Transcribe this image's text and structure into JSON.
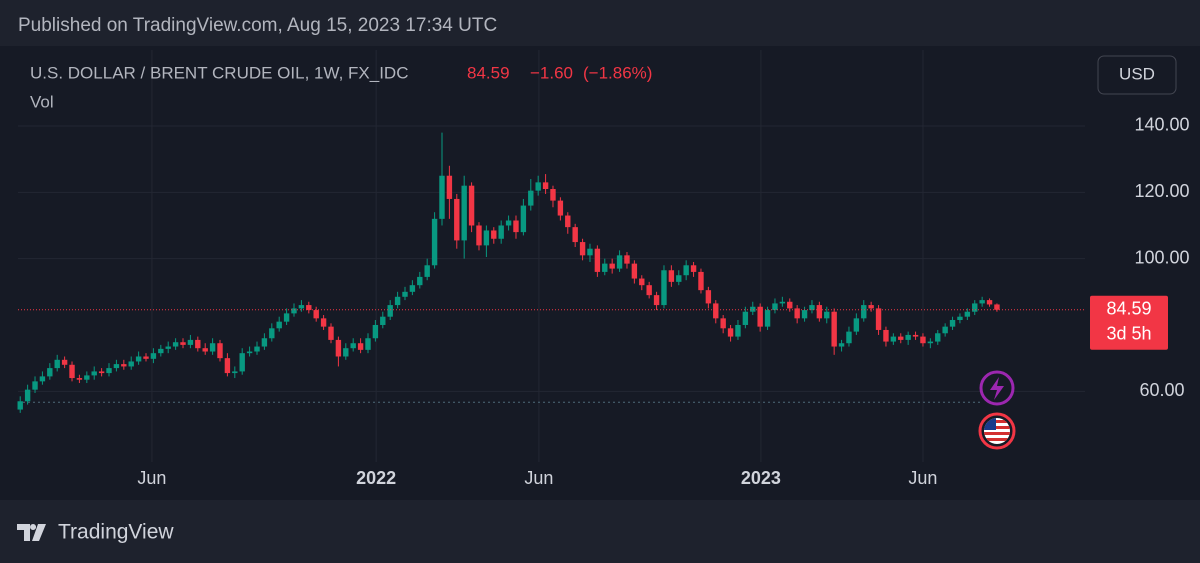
{
  "published": "Published on TradingView.com, Aug 15, 2023 17:34 UTC",
  "brand": "TradingView",
  "chart_data": {
    "type": "candlestick",
    "title": "U.S. DOLLAR / BRENT CRUDE OIL, 1W, FX_IDC",
    "last_price": 84.59,
    "change": {
      "value": -1.6,
      "label": "−1.60"
    },
    "change_pct": {
      "value": -1.86,
      "label": "(−1.86%)"
    },
    "indicator": "Vol",
    "currency": "USD",
    "countdown": "3d 5h",
    "ref_line": 56.7,
    "up_color": "#089981",
    "down_color": "#f23645",
    "grid": true,
    "x": [
      0,
      1,
      2,
      3,
      4,
      5,
      6,
      7,
      8,
      9,
      10,
      11,
      12,
      13,
      14,
      15,
      16,
      17,
      18,
      19,
      20,
      21,
      22,
      23,
      24,
      25,
      26,
      27,
      28,
      29,
      30,
      31,
      32,
      33,
      34,
      35,
      36,
      37,
      38,
      39,
      40,
      41,
      42,
      43,
      44,
      45,
      46,
      47,
      48,
      49,
      50,
      51,
      52,
      53,
      54,
      55,
      56,
      57,
      58,
      59,
      60,
      61,
      62,
      63,
      64,
      65,
      66,
      67,
      68,
      69,
      70,
      71,
      72,
      73,
      74,
      75,
      76,
      77,
      78,
      79,
      80,
      81,
      82,
      83,
      84,
      85,
      86,
      87,
      88,
      89,
      90,
      91,
      92,
      93,
      94,
      95,
      96,
      97,
      98,
      99,
      100,
      101,
      102,
      103,
      104,
      105,
      106,
      107,
      108,
      109,
      110,
      111,
      112,
      113,
      114,
      115,
      116,
      117,
      118,
      119,
      120,
      121,
      122,
      123,
      124,
      125,
      126,
      127,
      128,
      129,
      130,
      131,
      132
    ],
    "open": [
      54.5,
      57.0,
      60.5,
      63.0,
      64.5,
      67.0,
      69.5,
      68.0,
      64.0,
      63.5,
      64.8,
      66.0,
      65.5,
      67.0,
      68.2,
      67.5,
      69.0,
      70.5,
      69.8,
      71.5,
      72.8,
      73.5,
      74.8,
      74.0,
      75.5,
      73.0,
      72.0,
      74.5,
      70.0,
      65.5,
      66.0,
      71.5,
      72.0,
      73.5,
      76.0,
      79.0,
      81.0,
      83.5,
      85.0,
      86.0,
      84.5,
      82.0,
      79.5,
      75.5,
      70.5,
      73.0,
      74.5,
      72.5,
      76.0,
      80.0,
      82.5,
      86.0,
      88.5,
      90.0,
      92.0,
      94.5,
      98.0,
      112.0,
      125.0,
      118.0,
      105.5,
      122.0,
      110.0,
      104.0,
      108.5,
      106.0,
      110.0,
      111.5,
      108.0,
      116.0,
      120.5,
      123.0,
      121.0,
      117.5,
      113.0,
      109.5,
      105.0,
      101.0,
      103.0,
      96.0,
      98.5,
      97.0,
      101.0,
      98.5,
      94.0,
      92.0,
      89.0,
      86.0,
      96.5,
      93.0,
      95.0,
      98.0,
      96.0,
      90.5,
      86.5,
      82.0,
      79.0,
      76.5,
      80.0,
      84.0,
      85.5,
      79.5,
      84.5,
      86.5,
      87.0,
      85.0,
      82.0,
      84.5,
      86.0,
      82.0,
      84.0,
      73.5,
      74.5,
      78.0,
      82.0,
      86.0,
      85.0,
      78.5,
      75.0,
      76.5,
      75.5,
      77.0,
      76.5,
      74.5,
      75.0,
      77.5,
      79.5,
      81.5,
      82.5,
      84.0,
      86.5,
      87.5,
      86.19
    ],
    "high": [
      58.5,
      62.0,
      64.5,
      66.0,
      68.5,
      71.0,
      70.5,
      69.0,
      65.0,
      66.0,
      67.5,
      67.0,
      68.5,
      69.5,
      69.5,
      70.5,
      72.0,
      71.5,
      73.0,
      74.0,
      75.0,
      76.0,
      76.0,
      77.0,
      76.5,
      74.5,
      76.0,
      75.5,
      71.5,
      67.5,
      73.0,
      73.5,
      75.0,
      77.5,
      80.5,
      82.5,
      85.0,
      86.5,
      87.5,
      87.0,
      85.5,
      83.0,
      80.5,
      76.5,
      74.5,
      76.0,
      76.0,
      77.5,
      81.5,
      84.0,
      87.5,
      90.0,
      91.5,
      93.5,
      96.0,
      100.0,
      114.0,
      138.0,
      128.0,
      119.5,
      125.0,
      123.0,
      111.0,
      110.0,
      109.5,
      111.5,
      113.0,
      113.0,
      118.0,
      124.0,
      125.0,
      125.5,
      122.0,
      118.5,
      114.0,
      110.5,
      106.0,
      104.5,
      104.0,
      100.0,
      100.0,
      102.5,
      102.0,
      99.5,
      95.0,
      93.0,
      90.0,
      98.0,
      98.0,
      96.5,
      99.5,
      99.0,
      97.0,
      91.5,
      87.5,
      83.0,
      80.0,
      81.5,
      85.5,
      87.0,
      86.5,
      85.5,
      88.0,
      88.5,
      88.0,
      86.0,
      85.5,
      87.5,
      87.0,
      85.5,
      85.0,
      75.5,
      79.5,
      83.5,
      87.5,
      87.0,
      86.0,
      79.5,
      77.5,
      77.5,
      78.0,
      78.0,
      77.5,
      76.0,
      78.5,
      80.5,
      82.5,
      83.5,
      85.0,
      87.5,
      88.5,
      88.0,
      86.5
    ],
    "low": [
      53.5,
      56.0,
      59.5,
      62.0,
      63.5,
      66.0,
      67.0,
      63.0,
      62.5,
      62.5,
      63.5,
      64.5,
      64.5,
      66.0,
      66.5,
      66.5,
      68.0,
      69.0,
      68.5,
      70.5,
      71.5,
      72.5,
      73.0,
      73.0,
      72.0,
      71.0,
      71.0,
      69.0,
      64.5,
      64.0,
      65.0,
      70.5,
      71.0,
      72.5,
      75.0,
      78.0,
      80.0,
      82.5,
      84.0,
      83.5,
      81.0,
      78.5,
      74.5,
      67.5,
      69.5,
      72.0,
      71.5,
      71.5,
      75.0,
      79.0,
      81.5,
      85.0,
      87.5,
      89.0,
      91.0,
      93.5,
      97.0,
      110.0,
      112.0,
      103.0,
      100.0,
      108.0,
      102.5,
      100.5,
      104.5,
      104.5,
      108.5,
      106.0,
      107.0,
      114.5,
      119.0,
      119.5,
      115.5,
      111.5,
      107.5,
      103.5,
      99.5,
      99.0,
      94.5,
      95.0,
      95.5,
      96.0,
      97.0,
      92.5,
      90.5,
      88.0,
      84.5,
      85.0,
      91.5,
      92.0,
      93.5,
      94.5,
      89.5,
      85.0,
      80.5,
      77.5,
      75.0,
      75.5,
      79.0,
      83.0,
      78.0,
      78.5,
      83.5,
      85.5,
      84.0,
      80.5,
      81.0,
      83.5,
      81.0,
      80.5,
      71.0,
      72.0,
      73.5,
      77.0,
      81.0,
      84.0,
      77.0,
      73.5,
      74.0,
      74.5,
      74.0,
      75.5,
      73.5,
      73.0,
      74.0,
      76.5,
      78.5,
      80.5,
      81.5,
      83.0,
      85.5,
      85.5,
      84.0
    ],
    "close": [
      57.0,
      60.5,
      63.0,
      64.5,
      67.0,
      69.5,
      68.0,
      64.0,
      63.5,
      64.8,
      66.0,
      65.5,
      67.0,
      68.2,
      67.5,
      69.0,
      70.5,
      69.8,
      71.5,
      72.8,
      73.5,
      74.8,
      74.0,
      75.5,
      73.0,
      72.0,
      74.5,
      70.0,
      65.5,
      66.0,
      71.5,
      72.0,
      73.5,
      76.0,
      79.0,
      81.0,
      83.5,
      85.0,
      86.0,
      84.5,
      82.0,
      79.5,
      75.5,
      70.5,
      73.0,
      74.5,
      72.5,
      76.0,
      80.0,
      82.5,
      86.0,
      88.5,
      90.0,
      92.0,
      94.5,
      98.0,
      112.0,
      125.0,
      118.0,
      105.5,
      122.0,
      110.0,
      104.0,
      108.5,
      106.0,
      110.0,
      111.5,
      108.0,
      116.0,
      120.5,
      123.0,
      121.0,
      117.5,
      113.0,
      109.5,
      105.0,
      101.0,
      103.0,
      96.0,
      98.5,
      97.0,
      101.0,
      98.5,
      94.0,
      92.0,
      89.0,
      86.0,
      96.5,
      93.0,
      95.0,
      98.0,
      96.0,
      90.5,
      86.5,
      82.0,
      79.0,
      76.5,
      80.0,
      84.0,
      85.5,
      79.5,
      84.5,
      86.5,
      87.0,
      85.0,
      82.0,
      84.5,
      86.0,
      82.0,
      84.0,
      73.5,
      74.5,
      78.0,
      82.0,
      86.0,
      85.0,
      78.5,
      75.0,
      76.5,
      75.5,
      77.0,
      76.5,
      74.5,
      75.0,
      77.5,
      79.5,
      81.5,
      82.5,
      84.0,
      86.5,
      87.5,
      86.19,
      84.59
    ],
    "xlim": [
      -0.3,
      143.9
    ],
    "ylim": [
      40.8,
      161.4
    ],
    "xticks": [
      {
        "value": 17.8,
        "label": "Jun"
      },
      {
        "value": 48.1,
        "label": "2022"
      },
      {
        "value": 70.1,
        "label": "Jun"
      },
      {
        "value": 100.1,
        "label": "2023"
      },
      {
        "value": 122.0,
        "label": "Jun"
      }
    ],
    "yticks": [
      {
        "value": 60,
        "label": "60.00"
      },
      {
        "value": 100,
        "label": "100.00"
      },
      {
        "value": 120,
        "label": "120.00"
      },
      {
        "value": 140,
        "label": "140.00"
      }
    ]
  }
}
